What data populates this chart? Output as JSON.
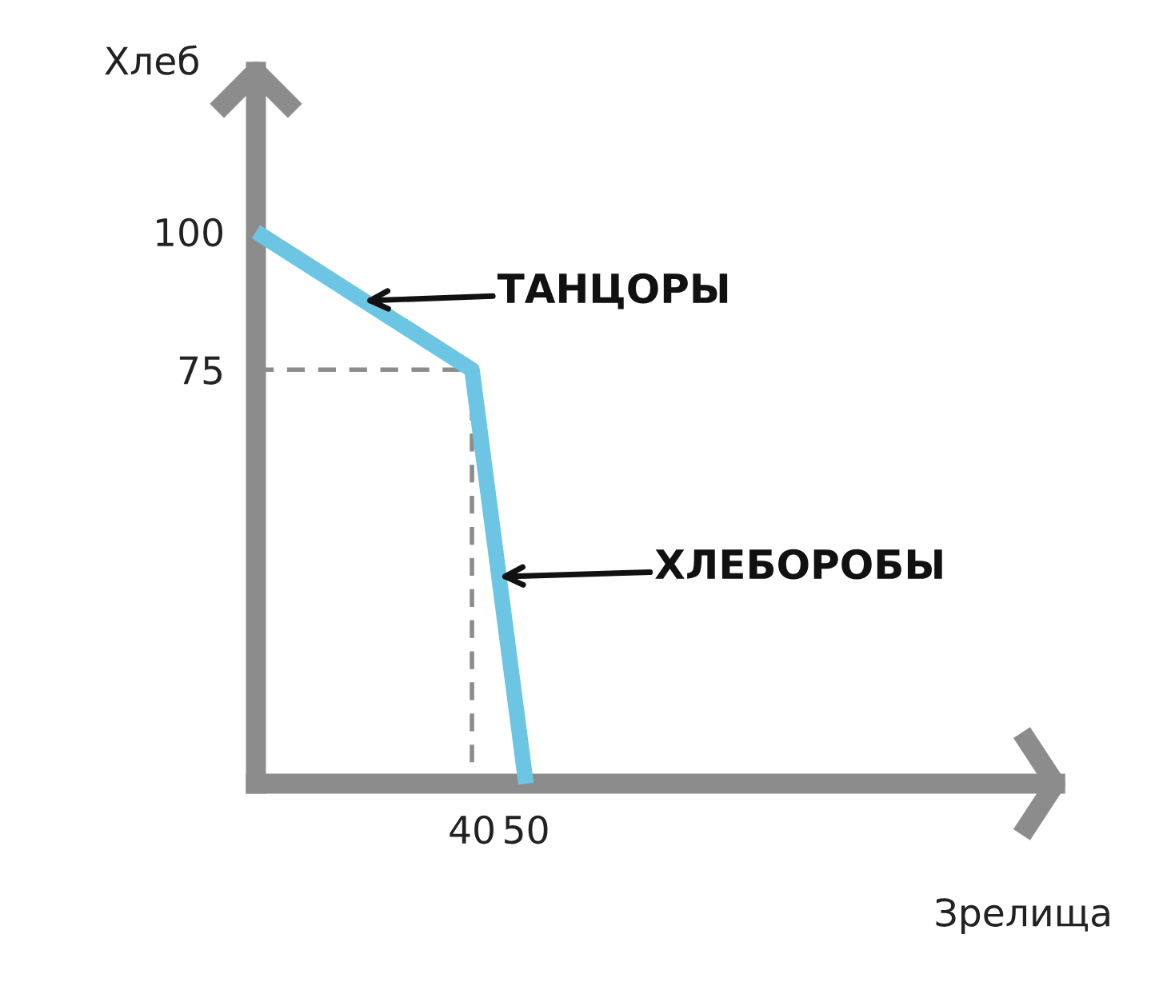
{
  "chart_data": {
    "type": "line",
    "xlabel": "Зрелища",
    "ylabel": "Хлеб",
    "xlim": [
      0,
      148
    ],
    "ylim": [
      0,
      129
    ],
    "xticks": [
      40,
      50
    ],
    "yticks": [
      75,
      100
    ],
    "grid": false,
    "legend": false,
    "marker": "none",
    "series": [
      {
        "color": "#6cc5e3",
        "x": [
          0,
          40,
          50
        ],
        "values": [
          100,
          75,
          0
        ],
        "line_style": "solid"
      },
      {
        "color": "#8c8c8c",
        "x": [
          0,
          40,
          40
        ],
        "values": [
          75,
          75,
          0
        ],
        "line_style": "dashed"
      }
    ],
    "annotations": [
      {
        "text": "ТАНЦОРЫ",
        "x": 20,
        "y": 87.5
      },
      {
        "text": "ХЛЕБОРОБЫ",
        "x": 45,
        "y": 37.5
      }
    ]
  }
}
